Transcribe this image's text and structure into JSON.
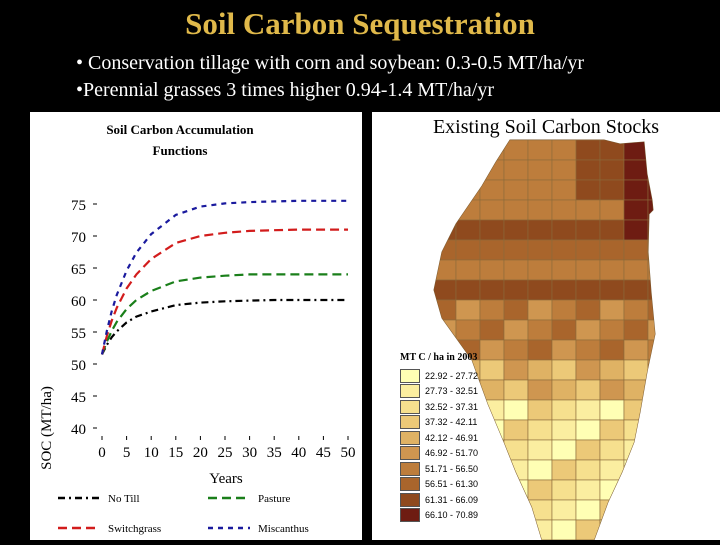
{
  "slide": {
    "title": "Soil Carbon Sequestration",
    "bullets": [
      "• Conservation tillage with corn and soybean:  0.3-0.5  MT/ha/yr",
      "•Perennial grasses 3 times higher 0.94-1.4 MT/ha/yr"
    ]
  },
  "chart_data": {
    "type": "line",
    "title": "Soil Carbon Accumulation Functions",
    "title_lines": [
      "Soil Carbon Accumulation",
      "Functions"
    ],
    "xlabel": "Years",
    "ylabel": "SOC (MT/ha)",
    "xlim": [
      0,
      50
    ],
    "ylim": [
      40,
      75
    ],
    "x_ticks": [
      0,
      5,
      10,
      15,
      20,
      25,
      30,
      35,
      40,
      45,
      50
    ],
    "y_ticks": [
      40,
      45,
      50,
      55,
      60,
      65,
      70,
      75
    ],
    "x": [
      0,
      1,
      2,
      3,
      5,
      7,
      10,
      15,
      20,
      25,
      30,
      35,
      40,
      45,
      50
    ],
    "series": [
      {
        "name": "No Till",
        "color": "#000000",
        "dash": "7 4 2 4",
        "values": [
          51.5,
          53.0,
          54.2,
          55.1,
          56.5,
          57.4,
          58.2,
          59.2,
          59.6,
          59.8,
          59.9,
          60.0,
          60.0,
          60.0,
          60.0
        ]
      },
      {
        "name": "Pasture",
        "color": "#1a7f1a",
        "dash": "9 5",
        "values": [
          51.5,
          53.5,
          55.2,
          56.6,
          58.6,
          60.0,
          61.4,
          62.9,
          63.5,
          63.8,
          64.0,
          64.0,
          64.0,
          64.0,
          64.0
        ]
      },
      {
        "name": "Switchgrass",
        "color": "#d21c1c",
        "dash": "9 5",
        "values": [
          51.5,
          54.4,
          56.8,
          58.8,
          61.8,
          64.0,
          66.4,
          68.9,
          70.0,
          70.5,
          70.8,
          70.9,
          71.0,
          71.0,
          71.0
        ]
      },
      {
        "name": "Miscanthus",
        "color": "#1a1a9e",
        "dash": "5 5",
        "values": [
          51.5,
          55.2,
          58.3,
          60.8,
          64.6,
          67.4,
          70.3,
          73.3,
          74.6,
          75.1,
          75.3,
          75.4,
          75.5,
          75.5,
          75.5
        ]
      }
    ]
  },
  "map": {
    "title": "Existing Soil Carbon Stocks",
    "legend_title": "MT C / ha in 2003",
    "legend": [
      {
        "label": "22.92 - 27.72",
        "color": "#ffffb4"
      },
      {
        "label": "27.73 - 32.51",
        "color": "#fbeea0"
      },
      {
        "label": "32.52 - 37.31",
        "color": "#f6e08e"
      },
      {
        "label": "37.32 - 42.11",
        "color": "#ecc978"
      },
      {
        "label": "42.12 - 46.91",
        "color": "#dfb264"
      },
      {
        "label": "46.92 - 51.70",
        "color": "#cf9650"
      },
      {
        "label": "51.71 - 56.50",
        "color": "#bd7d3c"
      },
      {
        "label": "56.51 - 61.30",
        "color": "#a9652c"
      },
      {
        "label": "61.31 - 66.09",
        "color": "#8f4a1e"
      },
      {
        "label": "66.10 - 70.89",
        "color": "#6e1c12"
      }
    ]
  }
}
